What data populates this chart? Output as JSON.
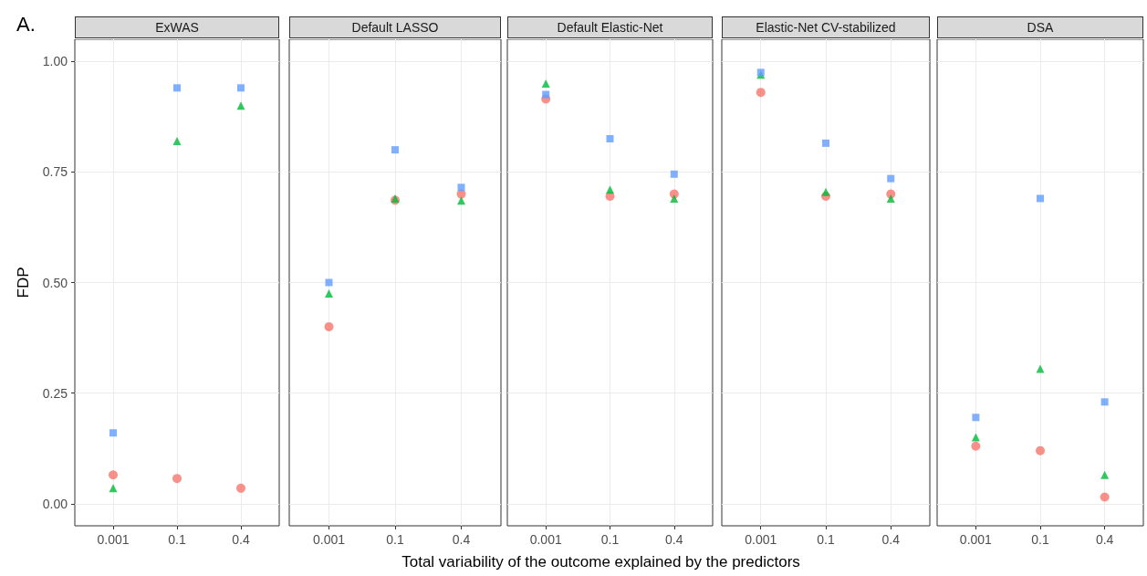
{
  "chart_data": [
    {
      "type": "scatter",
      "title": "ExWAS",
      "ylabel": "FDP",
      "annotations": [
        "A."
      ],
      "categories": [
        "0.001",
        "0.1",
        "0.4"
      ],
      "ylim": [
        -0.05,
        1.05
      ],
      "yticks": [
        {
          "value": 0,
          "label": "0.00"
        },
        {
          "value": 0.25,
          "label": "0.25"
        },
        {
          "value": 0.5,
          "label": "0.50"
        },
        {
          "value": 0.75,
          "label": "0.75"
        },
        {
          "value": 1,
          "label": "1.00"
        }
      ],
      "grid": true,
      "legend": false,
      "series": [
        {
          "color": "#f8766d",
          "marker": "circle",
          "values": [
            0.065,
            0.057,
            0.035
          ]
        },
        {
          "color": "#00ba38",
          "marker": "triangle",
          "values": [
            0.035,
            0.82,
            0.9
          ]
        },
        {
          "color": "#619cff",
          "marker": "square",
          "values": [
            0.16,
            0.94,
            0.94
          ]
        }
      ]
    },
    {
      "type": "scatter",
      "title": "Default LASSO",
      "categories": [
        "0.001",
        "0.1",
        "0.4"
      ],
      "ylim": [
        -0.05,
        1.05
      ],
      "yticks": [
        0,
        0.25,
        0.5,
        0.75,
        1
      ],
      "grid": true,
      "legend": false,
      "tick_labels": "x",
      "series": [
        {
          "color": "#f8766d",
          "marker": "circle",
          "values": [
            0.4,
            0.686,
            0.7
          ]
        },
        {
          "color": "#00ba38",
          "marker": "triangle",
          "values": [
            0.475,
            0.69,
            0.685
          ]
        },
        {
          "color": "#619cff",
          "marker": "square",
          "values": [
            0.5,
            0.8,
            0.715
          ]
        }
      ]
    },
    {
      "type": "scatter",
      "title": "Default Elastic-Net",
      "xlabel": "Total variability of the outcome explained by the predictors",
      "categories": [
        "0.001",
        "0.1",
        "0.4"
      ],
      "ylim": [
        -0.05,
        1.05
      ],
      "yticks": [
        0,
        0.25,
        0.5,
        0.75,
        1
      ],
      "grid": true,
      "legend": false,
      "tick_labels": "x",
      "series": [
        {
          "color": "#f8766d",
          "marker": "circle",
          "values": [
            0.915,
            0.695,
            0.7
          ]
        },
        {
          "color": "#00ba38",
          "marker": "triangle",
          "values": [
            0.95,
            0.71,
            0.69
          ]
        },
        {
          "color": "#619cff",
          "marker": "square",
          "values": [
            0.925,
            0.825,
            0.745
          ]
        }
      ]
    },
    {
      "type": "scatter",
      "title": "Elastic-Net CV-stabilized",
      "categories": [
        "0.001",
        "0.1",
        "0.4"
      ],
      "ylim": [
        -0.05,
        1.05
      ],
      "yticks": [
        0,
        0.25,
        0.5,
        0.75,
        1
      ],
      "grid": true,
      "legend": false,
      "tick_labels": "x",
      "series": [
        {
          "color": "#f8766d",
          "marker": "circle",
          "values": [
            0.93,
            0.695,
            0.7
          ]
        },
        {
          "color": "#00ba38",
          "marker": "triangle",
          "values": [
            0.97,
            0.705,
            0.69
          ]
        },
        {
          "color": "#619cff",
          "marker": "square",
          "values": [
            0.975,
            0.815,
            0.735
          ]
        }
      ]
    },
    {
      "type": "scatter",
      "title": "DSA",
      "categories": [
        "0.001",
        "0.1",
        "0.4"
      ],
      "ylim": [
        -0.05,
        1.05
      ],
      "yticks": [
        0,
        0.25,
        0.5,
        0.75,
        1
      ],
      "grid": true,
      "legend": false,
      "tick_labels": "x",
      "series": [
        {
          "color": "#f8766d",
          "marker": "circle",
          "values": [
            0.13,
            0.12,
            0.015
          ]
        },
        {
          "color": "#00ba38",
          "marker": "triangle",
          "values": [
            0.15,
            0.305,
            0.065
          ]
        },
        {
          "color": "#619cff",
          "marker": "square",
          "values": [
            0.195,
            0.69,
            0.23
          ]
        }
      ]
    }
  ]
}
